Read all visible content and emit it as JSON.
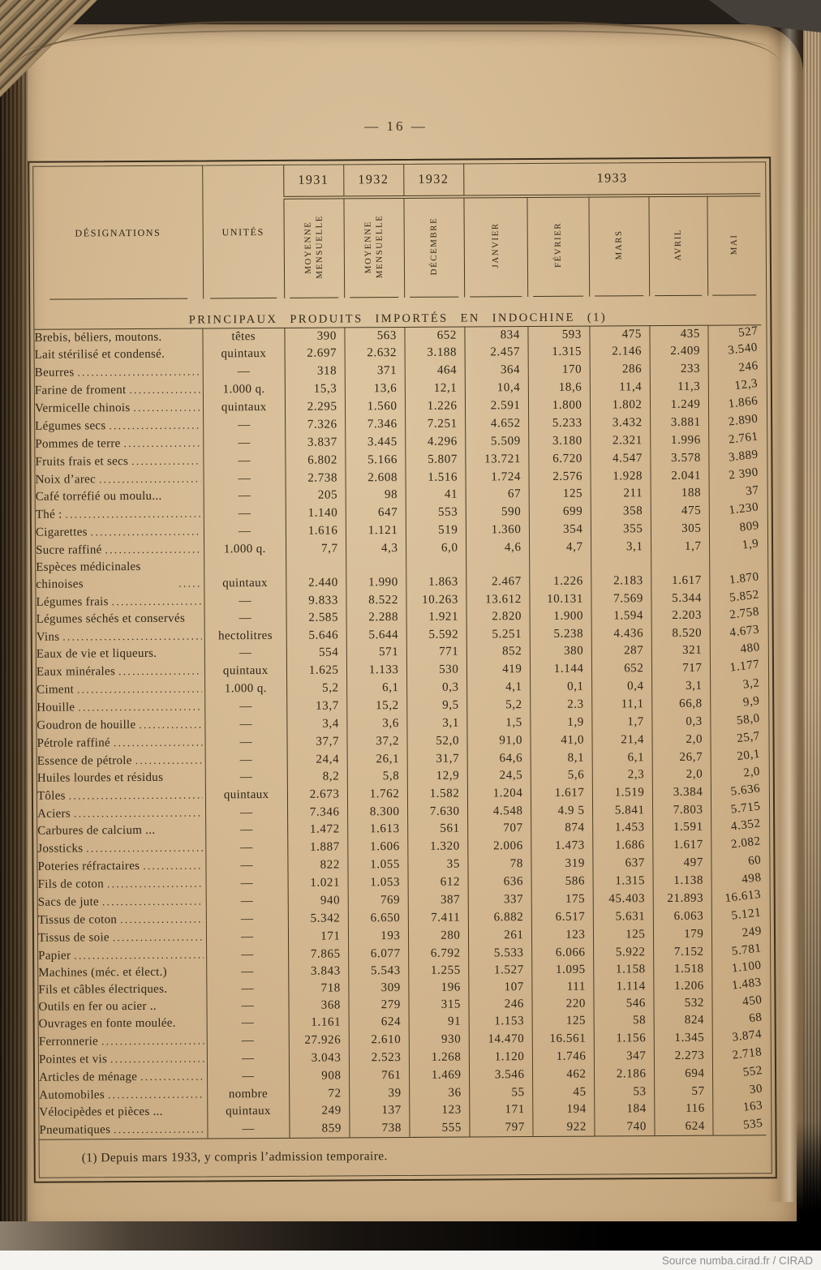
{
  "page": {
    "number_label": "— 16 —",
    "footnote": "(1)  Depuis mars 1933, y compris l’admission temporaire.",
    "source_credit": "Source numba.cirad.fr / CIRAD"
  },
  "colors": {
    "paper": "#d2b68f",
    "ink": "#2e2517",
    "rule": "#43371f",
    "attribution_bar": "#f4f3f0",
    "attribution_text": "#8d8d8d"
  },
  "table": {
    "section_title": "PRINCIPAUX  PRODUITS  IMPORTÉS  EN  INDOCHINE  (1)",
    "headers": {
      "designations": "DÉSIGNATIONS",
      "unites": "UNITÉS",
      "years": [
        "1931",
        "1932",
        "1932",
        "1933"
      ],
      "sub_moyenne_1931": "MOYENNE MENSUELLE",
      "sub_moyenne_1932": "MOYENNE MENSUELLE",
      "sub_decembre": "DÉCEMBRE",
      "months": [
        "JANVIER",
        "FÉVRIER",
        "MARS",
        "AVRIL",
        "MAI"
      ]
    },
    "rows": [
      {
        "designation": "Brebis, béliers, moutons.",
        "unit": "têtes",
        "dots": false,
        "values": [
          "390",
          "563",
          "652",
          "834",
          "593",
          "475",
          "435",
          "527"
        ]
      },
      {
        "designation": "Lait stérilisé et condensé.",
        "unit": "quintaux",
        "dots": false,
        "values": [
          "2.697",
          "2.632",
          "3.188",
          "2.457",
          "1.315",
          "2.146",
          "2.409",
          "3.540"
        ]
      },
      {
        "designation": "Beurres",
        "unit": "—",
        "dots": true,
        "values": [
          "318",
          "371",
          "464",
          "364",
          "170",
          "286",
          "233",
          "246"
        ]
      },
      {
        "designation": "Farine de froment",
        "unit": "1.000 q.",
        "dots": true,
        "values": [
          "15,3",
          "13,6",
          "12,1",
          "10,4",
          "18,6",
          "11,4",
          "11,3",
          "12,3"
        ]
      },
      {
        "designation": "Vermicelle chinois",
        "unit": "quintaux",
        "dots": true,
        "values": [
          "2.295",
          "1.560",
          "1.226",
          "2.591",
          "1.800",
          "1.802",
          "1.249",
          "1.866"
        ]
      },
      {
        "designation": "Légumes secs",
        "unit": "—",
        "dots": true,
        "values": [
          "7.326",
          "7.346",
          "7.251",
          "4.652",
          "5.233",
          "3.432",
          "3.881",
          "2.890"
        ]
      },
      {
        "designation": "Pommes de terre",
        "unit": "—",
        "dots": true,
        "values": [
          "3.837",
          "3.445",
          "4.296",
          "5.509",
          "3.180",
          "2.321",
          "1.996",
          "2.761"
        ]
      },
      {
        "designation": "Fruits frais et secs",
        "unit": "—",
        "dots": true,
        "values": [
          "6.802",
          "5.166",
          "5.807",
          "13.721",
          "6.720",
          "4.547",
          "3.578",
          "3.889"
        ]
      },
      {
        "designation": "Noix d’arec",
        "unit": "—",
        "dots": true,
        "values": [
          "2.738",
          "2.608",
          "1.516",
          "1.724",
          "2.576",
          "1.928",
          "2.041",
          "2 390"
        ]
      },
      {
        "designation": "Café torréfié ou moulu...",
        "unit": "—",
        "dots": false,
        "values": [
          "205",
          "98",
          "41",
          "67",
          "125",
          "211",
          "188",
          "37"
        ]
      },
      {
        "designation": "Thé :",
        "unit": "—",
        "dots": true,
        "values": [
          "1.140",
          "647",
          "553",
          "590",
          "699",
          "358",
          "475",
          "1.230"
        ]
      },
      {
        "designation": "Cigarettes",
        "unit": "—",
        "dots": true,
        "values": [
          "1.616",
          "1.121",
          "519",
          "1.360",
          "354",
          "355",
          "305",
          "809"
        ]
      },
      {
        "designation": "Sucre raffiné",
        "unit": "1.000 q.",
        "dots": true,
        "values": [
          "7,7",
          "4,3",
          "6,0",
          "4,6",
          "4,7",
          "3,1",
          "1,7",
          "1,9"
        ]
      },
      {
        "designation": "Espèces médicinales chinoises",
        "unit": "quintaux",
        "dots": true,
        "wrap": true,
        "values": [
          "2.440",
          "1.990",
          "1.863",
          "2.467",
          "1.226",
          "2.183",
          "1.617",
          "1.870"
        ]
      },
      {
        "designation": "Légumes frais",
        "unit": "—",
        "dots": true,
        "values": [
          "9.833",
          "8.522",
          "10.263",
          "13.612",
          "10.131",
          "7.569",
          "5.344",
          "5.852"
        ]
      },
      {
        "designation": "Légumes séchés et conservés",
        "unit": "—",
        "dots": false,
        "values": [
          "2.585",
          "2.288",
          "1.921",
          "2.820",
          "1.900",
          "1.594",
          "2.203",
          "2.758"
        ]
      },
      {
        "designation": "Vins",
        "unit": "hectolitres",
        "dots": true,
        "values": [
          "5.646",
          "5.644",
          "5.592",
          "5.251",
          "5.238",
          "4.436",
          "8.520",
          "4.673"
        ]
      },
      {
        "designation": "Eaux de vie et liqueurs.",
        "unit": "—",
        "dots": false,
        "values": [
          "554",
          "571",
          "771",
          "852",
          "380",
          "287",
          "321",
          "480"
        ]
      },
      {
        "designation": "Eaux minérales",
        "unit": "quintaux",
        "dots": true,
        "values": [
          "1.625",
          "1.133",
          "530",
          "419",
          "1.144",
          "652",
          "717",
          "1.177"
        ]
      },
      {
        "designation": "Ciment",
        "unit": "1.000 q.",
        "dots": true,
        "values": [
          "5,2",
          "6,1",
          "0,3",
          "4,1",
          "0,1",
          "0,4",
          "3,1",
          "3,2"
        ]
      },
      {
        "designation": "Houille",
        "unit": "—",
        "dots": true,
        "values": [
          "13,7",
          "15,2",
          "9,5",
          "5,2",
          "2.3",
          "11,1",
          "66,8",
          "9,9"
        ]
      },
      {
        "designation": "Goudron de houille",
        "unit": "—",
        "dots": true,
        "values": [
          "3,4",
          "3,6",
          "3,1",
          "1,5",
          "1,9",
          "1,7",
          "0,3",
          "58,0"
        ]
      },
      {
        "designation": "Pétrole raffiné",
        "unit": "—",
        "dots": true,
        "values": [
          "37,7",
          "37,2",
          "52,0",
          "91,0",
          "41,0",
          "21,4",
          "2,0",
          "25,7"
        ]
      },
      {
        "designation": "Essence de pétrole",
        "unit": "—",
        "dots": true,
        "values": [
          "24,4",
          "26,1",
          "31,7",
          "64,6",
          "8,1",
          "6,1",
          "26,7",
          "20,1"
        ]
      },
      {
        "designation": "Huiles lourdes et résidus",
        "unit": "—",
        "dots": false,
        "values": [
          "8,2",
          "5,8",
          "12,9",
          "24,5",
          "5,6",
          "2,3",
          "2,0",
          "2,0"
        ]
      },
      {
        "designation": "Tôles",
        "unit": "quintaux",
        "dots": true,
        "values": [
          "2.673",
          "1.762",
          "1.582",
          "1.204",
          "1.617",
          "1.519",
          "3.384",
          "5.636"
        ]
      },
      {
        "designation": "Aciers",
        "unit": "—",
        "dots": true,
        "values": [
          "7.346",
          "8.300",
          "7.630",
          "4.548",
          "4.9 5",
          "5.841",
          "7.803",
          "5.715"
        ]
      },
      {
        "designation": "Carbures de calcium ...",
        "unit": "—",
        "dots": false,
        "values": [
          "1.472",
          "1.613",
          "561",
          "707",
          "874",
          "1.453",
          "1.591",
          "4.352"
        ]
      },
      {
        "designation": "Jossticks",
        "unit": "—",
        "dots": true,
        "values": [
          "1.887",
          "1.606",
          "1.320",
          "2.006",
          "1.473",
          "1.686",
          "1.617",
          "2.082"
        ]
      },
      {
        "designation": "Poteries réfractaires",
        "unit": "—",
        "dots": true,
        "values": [
          "822",
          "1.055",
          "35",
          "78",
          "319",
          "637",
          "497",
          "60"
        ]
      },
      {
        "designation": "Fils de coton",
        "unit": "—",
        "dots": true,
        "values": [
          "1.021",
          "1.053",
          "612",
          "636",
          "586",
          "1.315",
          "1.138",
          "498"
        ]
      },
      {
        "designation": "Sacs de jute",
        "unit": "—",
        "dots": true,
        "values": [
          "940",
          "769",
          "387",
          "337",
          "175",
          "45.403",
          "21.893",
          "16.613"
        ]
      },
      {
        "designation": "Tissus de coton",
        "unit": "—",
        "dots": true,
        "values": [
          "5.342",
          "6.650",
          "7.411",
          "6.882",
          "6.517",
          "5.631",
          "6.063",
          "5.121"
        ]
      },
      {
        "designation": "Tissus de soie",
        "unit": "—",
        "dots": true,
        "values": [
          "171",
          "193",
          "280",
          "261",
          "123",
          "125",
          "179",
          "249"
        ]
      },
      {
        "designation": "Papier",
        "unit": "—",
        "dots": true,
        "values": [
          "7.865",
          "6.077",
          "6.792",
          "5.533",
          "6.066",
          "5.922",
          "7.152",
          "5.781"
        ]
      },
      {
        "designation": "Machines (méc. et élect.)",
        "unit": "—",
        "dots": false,
        "values": [
          "3.843",
          "5.543",
          "1.255",
          "1.527",
          "1.095",
          "1.158",
          "1.518",
          "1.100"
        ]
      },
      {
        "designation": "Fils et câbles électriques.",
        "unit": "—",
        "dots": false,
        "values": [
          "718",
          "309",
          "196",
          "107",
          "111",
          "1.114",
          "1.206",
          "1.483"
        ]
      },
      {
        "designation": "Outils en fer ou acier ..",
        "unit": "—",
        "dots": false,
        "values": [
          "368",
          "279",
          "315",
          "246",
          "220",
          "546",
          "532",
          "450"
        ]
      },
      {
        "designation": "Ouvrages en fonte moulée.",
        "unit": "—",
        "dots": false,
        "values": [
          "1.161",
          "624",
          "91",
          "1.153",
          "125",
          "58",
          "824",
          "68"
        ]
      },
      {
        "designation": "Ferronnerie",
        "unit": "—",
        "dots": true,
        "values": [
          "27.926",
          "2.610",
          "930",
          "14.470",
          "16.561",
          "1.156",
          "1.345",
          "3.874"
        ]
      },
      {
        "designation": "Pointes et vis",
        "unit": "—",
        "dots": true,
        "values": [
          "3.043",
          "2.523",
          "1.268",
          "1.120",
          "1.746",
          "347",
          "2.273",
          "2.718"
        ]
      },
      {
        "designation": "Articles de ménage",
        "unit": "—",
        "dots": true,
        "values": [
          "908",
          "761",
          "1.469",
          "3.546",
          "462",
          "2.186",
          "694",
          "552"
        ]
      },
      {
        "designation": "Automobiles",
        "unit": "nombre",
        "dots": true,
        "values": [
          "72",
          "39",
          "36",
          "55",
          "45",
          "53",
          "57",
          "30"
        ]
      },
      {
        "designation": "Vélocipèdes et pièces ...",
        "unit": "quintaux",
        "dots": false,
        "values": [
          "249",
          "137",
          "123",
          "171",
          "194",
          "184",
          "116",
          "163"
        ]
      },
      {
        "designation": "Pneumatiques",
        "unit": "—",
        "dots": true,
        "values": [
          "859",
          "738",
          "555",
          "797",
          "922",
          "740",
          "624",
          "535"
        ]
      }
    ]
  }
}
